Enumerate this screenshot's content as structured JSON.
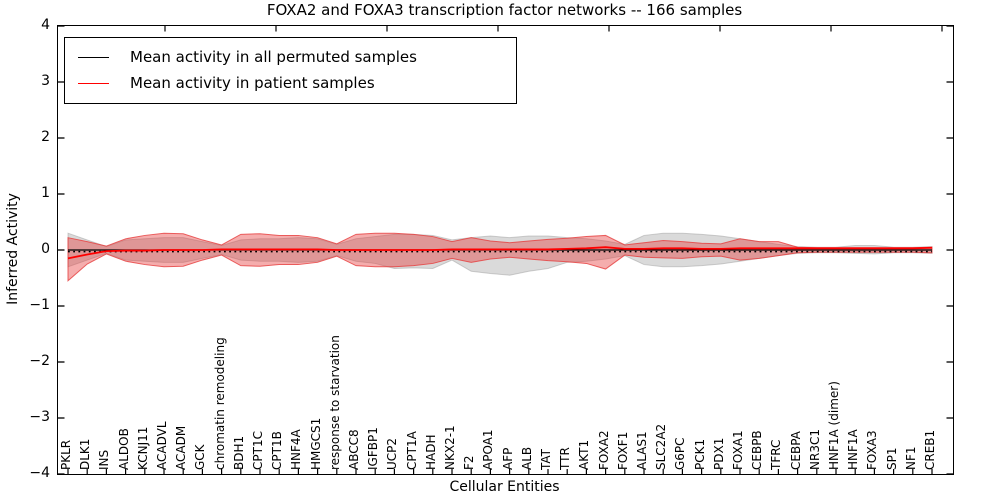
{
  "title": "FOXA2 and FOXA3 transcription factor networks -- 166 samples",
  "axes": {
    "xlabel": "Cellular Entities",
    "ylabel": "Inferred Activity"
  },
  "legend": {
    "items": [
      {
        "label": "Mean activity in all permuted samples",
        "color": "#000000"
      },
      {
        "label": "Mean activity in patient samples",
        "color": "#ff0000"
      }
    ]
  },
  "colors": {
    "permuted_line": "#000000",
    "patient_line": "#ff0000",
    "permuted_band_fill": "#969696",
    "patient_band_fill": "#e63c3c",
    "spine": "#000000"
  },
  "chart_data": {
    "type": "line",
    "title": "FOXA2 and FOXA3 transcription factor networks -- 166 samples",
    "xlabel": "Cellular Entities",
    "ylabel": "Inferred Activity",
    "ylim": [
      -4,
      4
    ],
    "yticks": [
      4,
      3,
      2,
      1,
      0,
      -1,
      -2,
      -3,
      -4
    ],
    "grid": false,
    "legend_position": "upper left",
    "categories": [
      "PKLR",
      "DLK1",
      "INS",
      "ALDOB",
      "KCNJ11",
      "ACADVL",
      "ACADM",
      "GCK",
      "chromatin remodeling",
      "BDH1",
      "CPT1C",
      "CPT1B",
      "HNF4A",
      "HMGCS1",
      "response to starvation",
      "ABCC8",
      "IGFBP1",
      "UCP2",
      "CPT1A",
      "HADH",
      "NKX2-1",
      "F2",
      "APOA1",
      "AFP",
      "ALB",
      "TAT",
      "TTR",
      "AKT1",
      "FOXA2",
      "FOXF1",
      "ALAS1",
      "SLC2A2",
      "G6PC",
      "PCK1",
      "PDX1",
      "FOXA1",
      "CEBPB",
      "TFRC",
      "CEBPA",
      "NR3C1",
      "HNF1A (dimer)",
      "HNF1A",
      "FOXA3",
      "SP1",
      "NF1",
      "CREB1"
    ],
    "series": [
      {
        "name": "Mean activity in all permuted samples",
        "color": "#000000",
        "style": "solid",
        "values": [
          0,
          0,
          0,
          0,
          0,
          0,
          0,
          0,
          0,
          0,
          0,
          0,
          0,
          0,
          0,
          0,
          0,
          0,
          0,
          0,
          0,
          0,
          0,
          0,
          0,
          0,
          0,
          0,
          0,
          0,
          0,
          0,
          0,
          0,
          0,
          0,
          0,
          0,
          0,
          0,
          0,
          0,
          0,
          0,
          0,
          0
        ]
      },
      {
        "name": "Mean activity in patient samples",
        "color": "#ff0000",
        "style": "solid",
        "values": [
          -0.15,
          -0.08,
          -0.02,
          -0.01,
          -0.01,
          0,
          0,
          0,
          0.01,
          0.01,
          0.01,
          0.01,
          0.01,
          0.01,
          0,
          0,
          0,
          0,
          0,
          0,
          0.01,
          0.01,
          0.01,
          0.01,
          0.01,
          0.01,
          0.02,
          0.03,
          0.05,
          0.02,
          0.02,
          0.03,
          0.03,
          0.02,
          0.02,
          0.03,
          0.03,
          0.03,
          0.03,
          0.03,
          0.03,
          0.03,
          0.03,
          0.03,
          0.03,
          0.04
        ]
      }
    ],
    "bands": [
      {
        "name": "permuted-std-band",
        "color": "#969696",
        "fill_opacity": 0.35,
        "edge_opacity": 0.45,
        "upper": [
          0.3,
          0.18,
          0.06,
          0.18,
          0.2,
          0.22,
          0.22,
          0.15,
          0.08,
          0.18,
          0.2,
          0.2,
          0.22,
          0.2,
          0.1,
          0.2,
          0.24,
          0.28,
          0.28,
          0.26,
          0.18,
          0.22,
          0.25,
          0.22,
          0.25,
          0.25,
          0.22,
          0.2,
          0.16,
          0.1,
          0.26,
          0.3,
          0.3,
          0.28,
          0.25,
          0.2,
          0.15,
          0.1,
          0.06,
          0.05,
          0.05,
          0.08,
          0.08,
          0.05,
          0.05,
          0.06
        ],
        "lower": [
          -0.3,
          -0.18,
          -0.06,
          -0.18,
          -0.2,
          -0.22,
          -0.22,
          -0.15,
          -0.08,
          -0.18,
          -0.2,
          -0.2,
          -0.22,
          -0.2,
          -0.1,
          -0.2,
          -0.24,
          -0.33,
          -0.32,
          -0.33,
          -0.18,
          -0.38,
          -0.42,
          -0.45,
          -0.38,
          -0.33,
          -0.22,
          -0.2,
          -0.16,
          -0.1,
          -0.26,
          -0.3,
          -0.3,
          -0.28,
          -0.25,
          -0.2,
          -0.15,
          -0.1,
          -0.06,
          -0.05,
          -0.05,
          -0.06,
          -0.07,
          -0.05,
          -0.05,
          -0.06
        ]
      },
      {
        "name": "patient-std-band",
        "color": "#e63c3c",
        "fill_opacity": 0.42,
        "edge_opacity": 0.8,
        "upper": [
          0.22,
          0.15,
          0.07,
          0.2,
          0.26,
          0.3,
          0.29,
          0.18,
          0.09,
          0.28,
          0.29,
          0.26,
          0.26,
          0.22,
          0.11,
          0.28,
          0.3,
          0.3,
          0.28,
          0.24,
          0.15,
          0.22,
          0.16,
          0.13,
          0.16,
          0.19,
          0.21,
          0.24,
          0.26,
          0.09,
          0.13,
          0.17,
          0.15,
          0.12,
          0.11,
          0.2,
          0.15,
          0.15,
          0.05,
          0.04,
          0.04,
          0.04,
          0.04,
          0.04,
          0.04,
          0.05
        ],
        "lower": [
          -0.55,
          -0.25,
          -0.07,
          -0.2,
          -0.26,
          -0.3,
          -0.29,
          -0.18,
          -0.09,
          -0.28,
          -0.29,
          -0.26,
          -0.26,
          -0.22,
          -0.11,
          -0.28,
          -0.3,
          -0.3,
          -0.28,
          -0.24,
          -0.15,
          -0.22,
          -0.16,
          -0.13,
          -0.16,
          -0.19,
          -0.21,
          -0.24,
          -0.34,
          -0.09,
          -0.13,
          -0.14,
          -0.15,
          -0.12,
          -0.11,
          -0.18,
          -0.15,
          -0.1,
          -0.05,
          -0.04,
          -0.04,
          -0.04,
          -0.04,
          -0.04,
          -0.04,
          -0.05
        ]
      }
    ]
  }
}
